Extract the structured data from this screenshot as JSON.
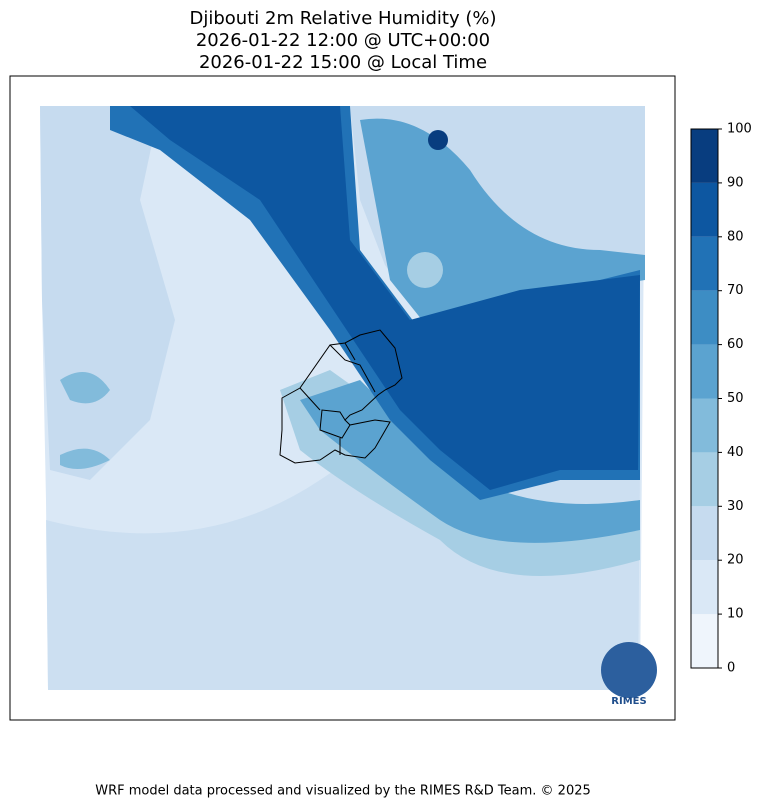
{
  "header": {
    "title_lines": [
      "Djibouti 2m Relative Humidity (%)",
      "2026-01-22 12:00 @ UTC+00:00",
      "2026-01-22 15:00 @ Local Time"
    ]
  },
  "colorbar": {
    "levels": [
      0,
      10,
      20,
      30,
      40,
      50,
      60,
      70,
      80,
      90,
      100
    ],
    "colors": [
      "#eff5fc",
      "#dae8f6",
      "#c6dbef",
      "#a6cee4",
      "#82bbdb",
      "#5ba3d0",
      "#3d8dc4",
      "#2172b6",
      "#0d57a1",
      "#083d7f"
    ]
  },
  "logo": {
    "text": "RIMES"
  },
  "footer": {
    "text": "WRF model data processed and visualized by the RIMES R&D Team. © 2025"
  }
}
